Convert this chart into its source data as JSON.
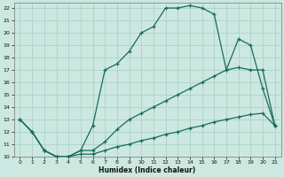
{
  "xlabel": "Humidex (Indice chaleur)",
  "bg_color": "#cce8e0",
  "grid_color": "#aad4c8",
  "line_color": "#1a6b5a",
  "xlim": [
    -0.5,
    21.5
  ],
  "ylim": [
    10,
    22.4
  ],
  "xticks": [
    0,
    1,
    2,
    3,
    4,
    5,
    6,
    7,
    8,
    9,
    10,
    11,
    12,
    13,
    14,
    15,
    16,
    17,
    18,
    19,
    20,
    21
  ],
  "yticks": [
    10,
    11,
    12,
    13,
    14,
    15,
    16,
    17,
    18,
    19,
    20,
    21,
    22
  ],
  "line_upper_x": [
    0,
    1,
    2,
    3,
    4,
    5,
    6,
    7,
    8,
    9,
    10,
    11,
    12,
    13,
    14,
    15,
    16,
    17,
    18,
    19,
    20,
    21
  ],
  "line_upper_y": [
    13,
    12,
    10.5,
    10,
    10,
    10.5,
    12.5,
    17,
    17.5,
    18.5,
    20,
    20.5,
    22,
    22,
    22.2,
    22,
    21.5,
    17,
    19.5,
    19,
    15.5,
    12.5
  ],
  "line_mid_x": [
    0,
    1,
    2,
    3,
    4,
    5,
    6,
    7,
    8,
    9,
    10,
    11,
    12,
    13,
    14,
    15,
    16,
    17,
    18,
    19,
    20,
    21
  ],
  "line_mid_y": [
    13,
    12,
    10.5,
    10,
    10,
    10.5,
    10.5,
    11.2,
    12.2,
    13,
    13.5,
    14,
    14.5,
    15,
    15.5,
    16,
    16.5,
    17,
    17.2,
    17,
    17,
    12.5
  ],
  "line_low_x": [
    0,
    1,
    2,
    3,
    4,
    5,
    6,
    7,
    8,
    9,
    10,
    11,
    12,
    13,
    14,
    15,
    16,
    17,
    18,
    19,
    20,
    21
  ],
  "line_low_y": [
    13,
    12,
    10.5,
    10,
    10,
    10.2,
    10.2,
    10.5,
    10.8,
    11,
    11.3,
    11.5,
    11.8,
    12,
    12.3,
    12.5,
    12.8,
    13,
    13.2,
    13.4,
    13.5,
    12.5
  ]
}
